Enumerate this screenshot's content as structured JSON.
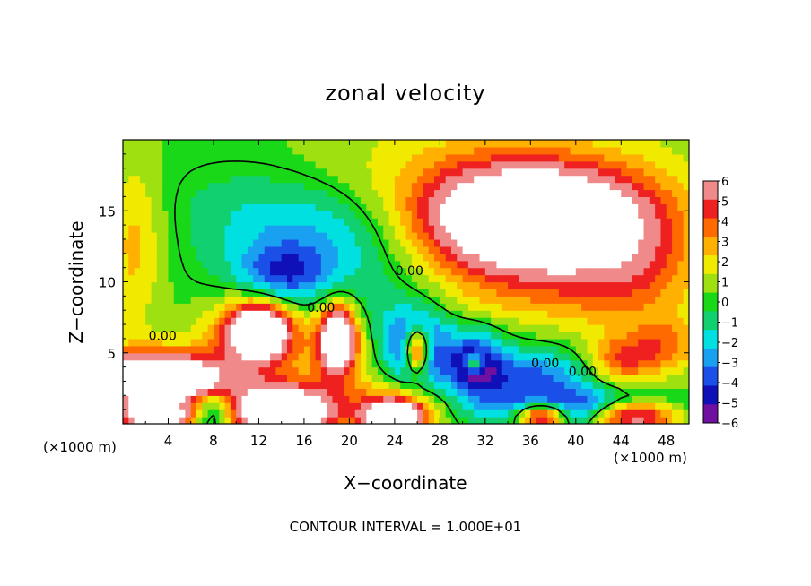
{
  "chart_data": {
    "type": "heatmap",
    "title": "zonal velocity",
    "xlabel": "X−coordinate",
    "ylabel": "Z−coordinate",
    "x_unit_left": "(×1000 m)",
    "x_unit_right": "(×1000 m)",
    "xlim": [
      0,
      50
    ],
    "ylim": [
      0,
      20
    ],
    "x_ticks": [
      4,
      8,
      12,
      16,
      20,
      24,
      28,
      32,
      36,
      40,
      44,
      48
    ],
    "y_ticks": [
      5,
      10,
      15
    ],
    "contour_labels": [
      {
        "text": "0.00",
        "x": 17.5,
        "y": 8.2
      },
      {
        "text": "0.00",
        "x": 3.5,
        "y": 6.2
      },
      {
        "text": "0.00",
        "x": 37.3,
        "y": 4.3
      },
      {
        "text": "0.00",
        "x": 40.6,
        "y": 3.7
      },
      {
        "text": "0.00",
        "x": 25.3,
        "y": 10.8
      }
    ],
    "footer": "CONTOUR INTERVAL = 1.000E+01",
    "colorbar": {
      "levels": [
        6,
        5,
        4,
        3,
        2,
        1,
        0,
        -1,
        -2,
        -3,
        -4,
        -5,
        -6
      ],
      "colors": [
        "#f08a8a",
        "#ee2020",
        "#ff6a00",
        "#ffb000",
        "#f0ea00",
        "#9fe010",
        "#18d818",
        "#10d070",
        "#00e0e0",
        "#1aa0f0",
        "#1a50e8",
        "#1010b8",
        "#7010a0"
      ]
    },
    "regions": [
      {
        "x": 36,
        "y": 14.5,
        "v": 11,
        "rx": 8,
        "ry": 3.2
      },
      {
        "x": 33,
        "y": 15.0,
        "v": 4,
        "rx": 15,
        "ry": 6
      },
      {
        "x": 45,
        "y": 12.0,
        "v": 3,
        "rx": 6,
        "ry": 5
      },
      {
        "x": 38,
        "y": 9.5,
        "v": 1.5,
        "rx": 10,
        "ry": 3
      },
      {
        "x": 1,
        "y": 12.5,
        "v": 2.5,
        "rx": 2.5,
        "ry": 6
      },
      {
        "x": 18,
        "y": 13.0,
        "v": -4,
        "rx": 9,
        "ry": 4
      },
      {
        "x": 14,
        "y": 10.5,
        "v": -3.5,
        "rx": 4,
        "ry": 2
      },
      {
        "x": 22,
        "y": 7.5,
        "v": -1.8,
        "rx": 10,
        "ry": 3
      },
      {
        "x": 10,
        "y": 15.5,
        "v": -0.8,
        "rx": 6,
        "ry": 3
      },
      {
        "x": 12,
        "y": 6.5,
        "v": 9,
        "rx": 2.5,
        "ry": 1.8
      },
      {
        "x": 12,
        "y": 6.5,
        "v": 5,
        "rx": 4.5,
        "ry": 2.8
      },
      {
        "x": 19,
        "y": 6.0,
        "v": 9,
        "rx": 1.3,
        "ry": 2
      },
      {
        "x": 19,
        "y": 6.0,
        "v": 5,
        "rx": 2.6,
        "ry": 3
      },
      {
        "x": 26,
        "y": 5.2,
        "v": 9,
        "rx": 1.1,
        "ry": 1.6
      },
      {
        "x": 26,
        "y": 5.2,
        "v": -5,
        "rx": 2.6,
        "ry": 2.8
      },
      {
        "x": 31,
        "y": 4.3,
        "v": -5,
        "rx": 2.5,
        "ry": 2.3
      },
      {
        "x": 31,
        "y": 4.3,
        "v": 6,
        "rx": 0.8,
        "ry": 0.6
      },
      {
        "x": 36,
        "y": 3.2,
        "v": -4.2,
        "rx": 6,
        "ry": 2.2
      },
      {
        "x": 3,
        "y": 3.2,
        "v": 10,
        "rx": 5,
        "ry": 1.4
      },
      {
        "x": 3,
        "y": 3.2,
        "v": 5,
        "rx": 7,
        "ry": 2.3
      },
      {
        "x": 3,
        "y": 0.6,
        "v": 10,
        "rx": 3,
        "ry": 0.9
      },
      {
        "x": 14,
        "y": 0.8,
        "v": 10,
        "rx": 4,
        "ry": 1.5
      },
      {
        "x": 14,
        "y": 1.5,
        "v": 4,
        "rx": 6,
        "ry": 2.2
      },
      {
        "x": 24,
        "y": 0.5,
        "v": 9,
        "rx": 2.5,
        "ry": 1
      },
      {
        "x": 24,
        "y": 1.2,
        "v": 4,
        "rx": 4,
        "ry": 1.8
      },
      {
        "x": 37,
        "y": 0.6,
        "v": 9,
        "rx": 2.2,
        "ry": 0.9
      },
      {
        "x": 45,
        "y": 0.6,
        "v": 9,
        "rx": 4,
        "ry": 1.1
      },
      {
        "x": 41,
        "y": 1.0,
        "v": -5,
        "rx": 8,
        "ry": 1.3
      },
      {
        "x": 44,
        "y": 4.5,
        "v": 4,
        "rx": 3,
        "ry": 1.7
      },
      {
        "x": 48,
        "y": 5.5,
        "v": 3,
        "rx": 3,
        "ry": 2
      },
      {
        "x": 8,
        "y": 1.0,
        "v": -4.5,
        "rx": 2,
        "ry": 1.6
      },
      {
        "x": 30,
        "y": 8.5,
        "v": 0.5,
        "rx": 6,
        "ry": 1.5
      }
    ]
  }
}
